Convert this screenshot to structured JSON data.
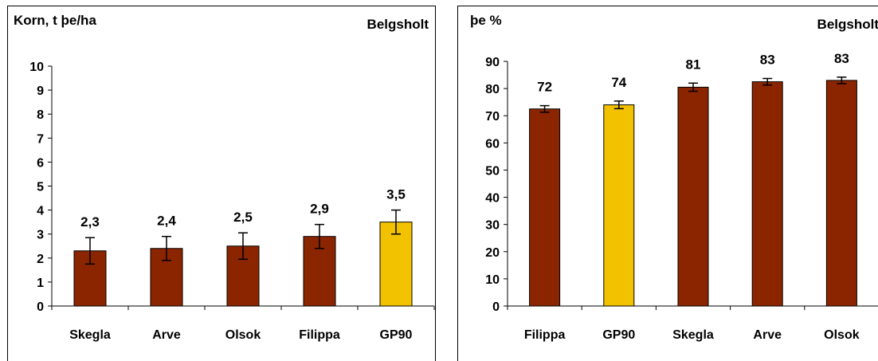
{
  "chart_data": [
    {
      "type": "bar",
      "title": "Korn, t þe/ha",
      "subtitle": "Belgsholt",
      "categories": [
        "Skegla",
        "Arve",
        "Olsok",
        "Filippa",
        "GP90"
      ],
      "values": [
        2.3,
        2.4,
        2.5,
        2.9,
        3.5
      ],
      "value_labels": [
        "2,3",
        "2,4",
        "2,5",
        "2,9",
        "3,5"
      ],
      "error": [
        0.55,
        0.5,
        0.55,
        0.5,
        0.5
      ],
      "bar_colors": [
        "#8B2500",
        "#8B2500",
        "#8B2500",
        "#8B2500",
        "#F2C200"
      ],
      "ylim": [
        0,
        10
      ],
      "yticks": [
        0,
        1,
        2,
        3,
        4,
        5,
        6,
        7,
        8,
        9,
        10
      ],
      "xlabel": "",
      "ylabel": "",
      "grid": false,
      "legend": "none"
    },
    {
      "type": "bar",
      "title": "þe %",
      "subtitle": "Belgsholt",
      "categories": [
        "Filippa",
        "GP90",
        "Skegla",
        "Arve",
        "Olsok"
      ],
      "values": [
        72.5,
        74,
        80.5,
        82.5,
        83
      ],
      "value_labels": [
        "72",
        "74",
        "81",
        "83",
        "83"
      ],
      "error": [
        1.2,
        1.4,
        1.5,
        1.2,
        1.2
      ],
      "bar_colors": [
        "#8B2500",
        "#F2C200",
        "#8B2500",
        "#8B2500",
        "#8B2500"
      ],
      "ylim": [
        0,
        90
      ],
      "yticks": [
        0,
        10,
        20,
        30,
        40,
        50,
        60,
        70,
        80,
        90
      ],
      "xlabel": "",
      "ylabel": "",
      "grid": false,
      "legend": "none"
    }
  ]
}
